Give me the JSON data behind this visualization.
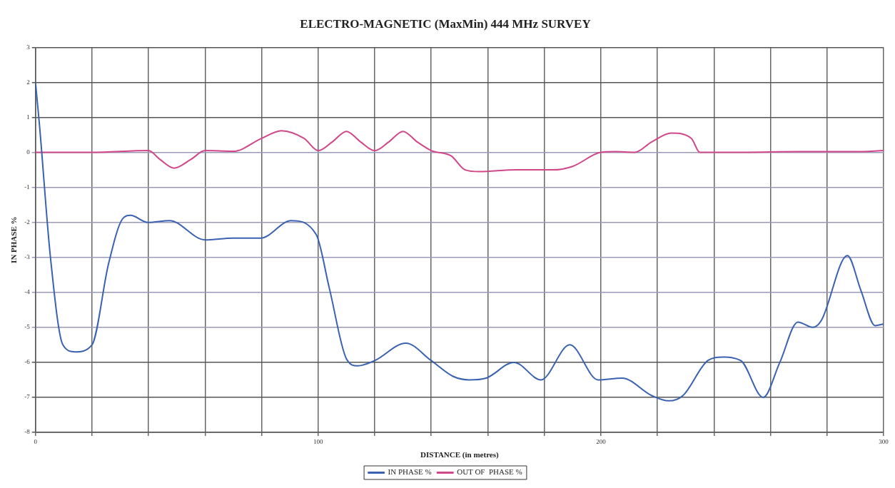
{
  "chart_data": {
    "type": "line",
    "title": "ELECTRO-MAGNETIC (MaxMin) 444 MHz SURVEY",
    "xlabel": "DISTANCE (in metres)",
    "ylabel": "IN PHASE %",
    "xlim": [
      0,
      300
    ],
    "xticks": [
      0,
      {
        "value": 20,
        "label": null
      },
      {
        "value": 40,
        "label": null
      },
      {
        "value": 60,
        "label": null
      },
      {
        "value": 80,
        "label": null
      },
      100,
      {
        "value": 120,
        "label": null
      },
      {
        "value": 140,
        "label": null
      },
      {
        "value": 160,
        "label": null
      },
      {
        "value": 180,
        "label": null
      },
      200,
      {
        "value": 220,
        "label": null
      },
      {
        "value": 240,
        "label": null
      },
      {
        "value": 260,
        "label": null
      },
      {
        "value": 280,
        "label": null
      },
      300
    ],
    "ylim": [
      -8,
      3
    ],
    "yticks": [
      -8,
      -7,
      -6,
      -5,
      -4,
      -3,
      -2,
      -1,
      0,
      1,
      2,
      3
    ],
    "grid": true,
    "legend": "bottom",
    "marker": "none",
    "line_style": "solid",
    "series": [
      {
        "name": "IN PHASE %",
        "color": "#3a62b0",
        "x": [
          0,
          1.4,
          5.3,
          9.7,
          14,
          20,
          25.8,
          30.8,
          33.6,
          39.8,
          47.4,
          60,
          69.9,
          79.7,
          90.4,
          99.3,
          104,
          110,
          114,
          120,
          131,
          140,
          147.7,
          153.5,
          159.4,
          169.3,
          178.8,
          189,
          199,
          207.5,
          218,
          224,
          229,
          237.8,
          243,
          249.5,
          257.4,
          263.3,
          269.7,
          275,
          278,
          287.2,
          292,
          297,
          300
        ],
        "values": [
          2,
          0.8,
          -3,
          -5.5,
          -5.7,
          -5.5,
          -3.2,
          -1.9,
          -1.8,
          -2,
          -1.95,
          -2.5,
          -2.45,
          -2.45,
          -1.95,
          -2.35,
          -3.9,
          -5.9,
          -6.1,
          -5.95,
          -5.45,
          -5.95,
          -6.4,
          -6.5,
          -6.45,
          -6,
          -6.5,
          -5.5,
          -6.5,
          -6.45,
          -6.95,
          -7.1,
          -6.95,
          -5.95,
          -5.85,
          -5.95,
          -7,
          -6,
          -4.85,
          -5,
          -4.8,
          -2.95,
          -3.95,
          -4.95,
          -4.9
        ]
      },
      {
        "name": "OUT OF  PHASE %",
        "color": "#d0478a",
        "x": [
          0,
          20,
          40,
          44,
          49,
          55,
          60,
          70,
          80,
          87,
          95,
          100,
          105,
          110,
          115,
          120,
          125,
          130,
          135,
          140,
          147,
          152,
          157,
          170,
          183,
          190,
          200,
          205,
          212,
          218,
          225,
          232,
          235,
          250,
          270,
          290,
          300
        ],
        "values": [
          0,
          0,
          0.05,
          -0.2,
          -0.45,
          -0.2,
          0.05,
          0.03,
          0.4,
          0.62,
          0.4,
          0.05,
          0.3,
          0.6,
          0.3,
          0.05,
          0.3,
          0.6,
          0.3,
          0.05,
          -0.1,
          -0.5,
          -0.55,
          -0.5,
          -0.5,
          -0.4,
          0,
          0.02,
          0,
          0.3,
          0.55,
          0.4,
          0,
          0,
          0.02,
          0.02,
          0.05
        ]
      }
    ]
  }
}
